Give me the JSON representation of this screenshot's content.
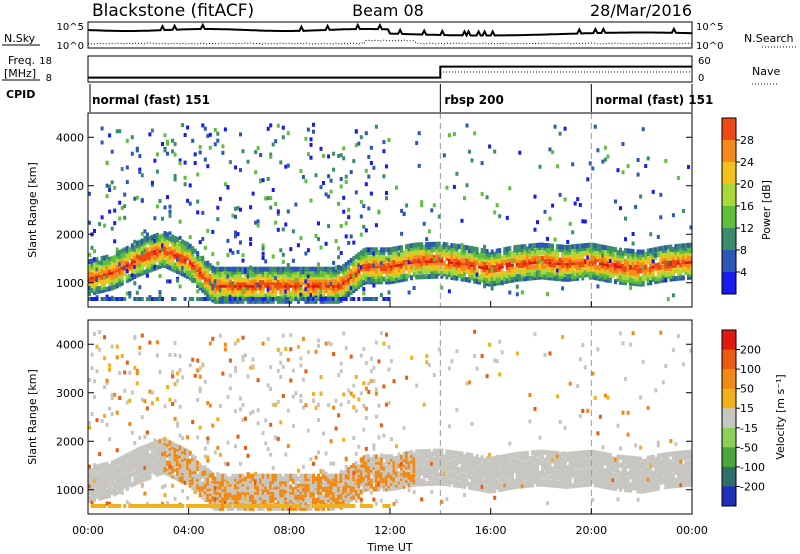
{
  "header": {
    "station": "Blackstone (fitACF)",
    "beam": "Beam 08",
    "date": "28/Mar/2016"
  },
  "noise_panel": {
    "left_label": "N.Sky",
    "right_label": "N.Search",
    "ticks": [
      "10^5",
      "10^0"
    ]
  },
  "freq_panel": {
    "left_label_1": "Freq.",
    "left_label_2": "[MHz]",
    "right_label": "Nave",
    "left_ticks": [
      "18",
      "8"
    ],
    "right_ticks": [
      "60",
      "0"
    ]
  },
  "cpid": {
    "label": "CPID",
    "segments": [
      {
        "name": "normal (fast) 151",
        "start_hour": 0
      },
      {
        "name": "rbsp 200",
        "start_hour": 14
      },
      {
        "name": "normal (fast) 151",
        "start_hour": 20
      }
    ]
  },
  "power_panel": {
    "ylabel": "Slant Range [km]",
    "yticks": [
      "4000",
      "3000",
      "2000",
      "1000"
    ],
    "colorbar_label": "Power [dB]",
    "colorbar_ticks": [
      "28",
      "24",
      "20",
      "16",
      "12",
      "8",
      "4"
    ],
    "colors": [
      "#1a1aee",
      "#2a57b8",
      "#3a8c6a",
      "#5fbf3a",
      "#a8d83a",
      "#f2c21a",
      "#f58a1a",
      "#ee4a14",
      "#e01a10"
    ]
  },
  "velocity_panel": {
    "ylabel": "Slant Range [km]",
    "yticks": [
      "4000",
      "3000",
      "2000",
      "1000"
    ],
    "colorbar_label": "Velocity [m s⁻¹]",
    "colorbar_ticks": [
      "200",
      "100",
      "50",
      "15",
      "-15",
      "-50",
      "-100",
      "-200"
    ],
    "colors": [
      "#1f2fb8",
      "#2f6f6a",
      "#4aa83a",
      "#8ad05a",
      "#c8c6c0",
      "#f2b01a",
      "#f08a14",
      "#ea5a10",
      "#e01a10"
    ]
  },
  "x_axis": {
    "label": "Time UT",
    "ticks": [
      "00:00",
      "04:00",
      "08:00",
      "12:00",
      "16:00",
      "20:00",
      "00:00"
    ]
  },
  "chart_data": {
    "type": "heatmap",
    "title": "Blackstone (fitACF)",
    "x": [
      0,
      1,
      2,
      3,
      4,
      5,
      6,
      7,
      8,
      9,
      10,
      11,
      12,
      13,
      14,
      15,
      16,
      17,
      18,
      19,
      20,
      21,
      22,
      23,
      24
    ],
    "xlabel": "Time UT",
    "ylabel": "Slant Range [km]",
    "ylim": [
      500,
      4500
    ],
    "xlim": [
      0,
      24
    ],
    "main_band_center_km": [
      1150,
      1280,
      1550,
      1750,
      1500,
      1000,
      1000,
      1000,
      1000,
      1000,
      1000,
      1400,
      1400,
      1500,
      1520,
      1450,
      1350,
      1450,
      1500,
      1450,
      1500,
      1400,
      1350,
      1450,
      1500
    ],
    "power_db_range": [
      4,
      28
    ],
    "velocity_range": [
      -200,
      200
    ],
    "frequency_mhz": [
      {
        "from_hour": 0,
        "to_hour": 14,
        "value": 10
      },
      {
        "from_hour": 14,
        "to_hour": 24,
        "value": 15
      }
    ]
  }
}
